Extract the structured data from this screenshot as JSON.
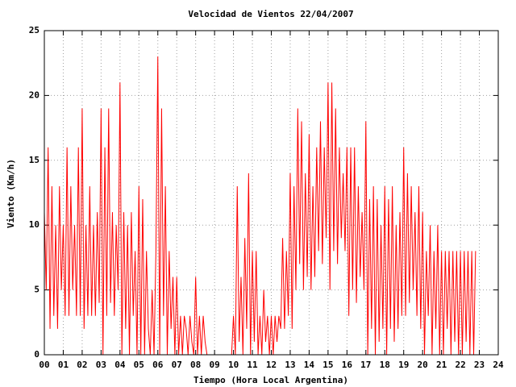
{
  "chart_data": {
    "type": "line",
    "title": "Velocidad de Vientos 22/04/2007",
    "xlabel": "Tiempo (Hora Local Argentina)",
    "ylabel": "Viento (Km/h)",
    "xlim": [
      0,
      24
    ],
    "ylim": [
      0,
      25
    ],
    "yticks": [
      0,
      5,
      10,
      15,
      20,
      25
    ],
    "xticks": [
      {
        "value": 0,
        "label": "00"
      },
      {
        "value": 1,
        "label": "01"
      },
      {
        "value": 2,
        "label": "02"
      },
      {
        "value": 3,
        "label": "03"
      },
      {
        "value": 4,
        "label": "04"
      },
      {
        "value": 5,
        "label": "05"
      },
      {
        "value": 6,
        "label": "06"
      },
      {
        "value": 7,
        "label": "07"
      },
      {
        "value": 8,
        "label": "08"
      },
      {
        "value": 9,
        "label": "09"
      },
      {
        "value": 10,
        "label": "10"
      },
      {
        "value": 11,
        "label": "11"
      },
      {
        "value": 12,
        "label": "12"
      },
      {
        "value": 13,
        "label": "13"
      },
      {
        "value": 14,
        "label": "14"
      },
      {
        "value": 15,
        "label": "15"
      },
      {
        "value": 16,
        "label": "16"
      },
      {
        "value": 17,
        "label": "17"
      },
      {
        "value": 18,
        "label": "18"
      },
      {
        "value": 19,
        "label": "19"
      },
      {
        "value": 20,
        "label": "20"
      },
      {
        "value": 21,
        "label": "21"
      },
      {
        "value": 22,
        "label": "22"
      },
      {
        "value": 23,
        "label": "23"
      },
      {
        "value": 24,
        "label": "24"
      }
    ],
    "grid": true,
    "x": [
      0,
      0.1,
      0.2,
      0.3,
      0.4,
      0.5,
      0.6,
      0.7,
      0.8,
      0.9,
      1,
      1.1,
      1.2,
      1.3,
      1.4,
      1.5,
      1.6,
      1.7,
      1.8,
      1.9,
      2,
      2.1,
      2.2,
      2.3,
      2.4,
      2.5,
      2.6,
      2.7,
      2.8,
      2.9,
      3,
      3.1,
      3.2,
      3.3,
      3.4,
      3.5,
      3.6,
      3.7,
      3.8,
      3.9,
      4,
      4.1,
      4.2,
      4.3,
      4.4,
      4.5,
      4.6,
      4.7,
      4.8,
      4.9,
      5,
      5.1,
      5.2,
      5.3,
      5.4,
      5.5,
      5.6,
      5.7,
      5.8,
      5.9,
      6,
      6.1,
      6.2,
      6.3,
      6.4,
      6.5,
      6.6,
      6.7,
      6.8,
      6.9,
      7,
      7.1,
      7.2,
      7.3,
      7.4,
      7.5,
      7.6,
      7.7,
      7.8,
      7.9,
      8,
      8.1,
      8.2,
      8.3,
      8.4,
      8.5,
      8.6,
      8.7,
      8.8,
      8.9,
      9,
      9.1,
      9.2,
      9.3,
      9.4,
      9.5,
      9.6,
      9.7,
      9.8,
      9.9,
      10,
      10.1,
      10.2,
      10.3,
      10.4,
      10.5,
      10.6,
      10.7,
      10.8,
      10.9,
      11,
      11.1,
      11.2,
      11.3,
      11.4,
      11.5,
      11.6,
      11.7,
      11.8,
      11.9,
      12,
      12.1,
      12.2,
      12.3,
      12.4,
      12.5,
      12.6,
      12.7,
      12.8,
      12.9,
      13,
      13.1,
      13.2,
      13.3,
      13.4,
      13.5,
      13.6,
      13.7,
      13.8,
      13.9,
      14,
      14.1,
      14.2,
      14.3,
      14.4,
      14.5,
      14.6,
      14.7,
      14.8,
      14.9,
      15,
      15.1,
      15.2,
      15.3,
      15.4,
      15.5,
      15.6,
      15.7,
      15.8,
      15.9,
      16,
      16.1,
      16.2,
      16.3,
      16.4,
      16.5,
      16.6,
      16.7,
      16.8,
      16.9,
      17,
      17.1,
      17.2,
      17.3,
      17.4,
      17.5,
      17.6,
      17.7,
      17.8,
      17.9,
      18,
      18.1,
      18.2,
      18.3,
      18.4,
      18.5,
      18.6,
      18.7,
      18.8,
      18.9,
      19,
      19.1,
      19.2,
      19.3,
      19.4,
      19.5,
      19.6,
      19.7,
      19.8,
      19.9,
      20,
      20.1,
      20.2,
      20.3,
      20.4,
      20.5,
      20.6,
      20.7,
      20.8,
      20.9,
      21,
      21.1,
      21.2,
      21.3,
      21.4,
      21.5,
      21.6,
      21.7,
      21.8,
      21.9,
      22,
      22.1,
      22.2,
      22.3,
      22.4,
      22.5,
      22.6,
      22.7,
      22.8
    ],
    "series": [
      {
        "color": "#ff0000",
        "values": [
          11,
          5,
          16,
          2,
          13,
          3,
          10,
          2,
          13,
          5,
          10,
          3,
          16,
          3,
          13,
          5,
          10,
          3,
          16,
          3,
          19,
          2,
          10,
          3,
          13,
          3,
          10,
          3,
          11,
          4,
          19,
          0,
          16,
          3,
          19,
          4,
          11,
          3,
          10,
          5,
          21,
          0,
          11,
          2,
          10,
          0,
          11,
          3,
          8,
          0,
          13,
          0,
          12,
          0,
          8,
          2,
          0,
          5,
          0,
          8,
          23,
          0,
          19,
          3,
          13,
          0,
          8,
          2,
          6,
          0,
          6,
          0,
          3,
          0,
          3,
          2,
          0,
          3,
          1,
          0,
          6,
          0,
          3,
          0,
          3,
          1,
          0,
          0,
          0,
          0,
          0,
          0,
          0,
          0,
          0,
          0,
          0,
          0,
          0,
          0,
          3,
          0,
          13,
          1,
          6,
          0,
          9,
          2,
          14,
          0,
          8,
          1,
          8,
          0,
          3,
          0,
          5,
          1,
          3,
          0,
          3,
          0,
          3,
          1,
          3,
          2,
          9,
          2,
          8,
          3,
          14,
          2,
          13,
          5,
          19,
          7,
          18,
          5,
          14,
          6,
          17,
          5,
          13,
          6,
          16,
          8,
          18,
          7,
          16,
          9,
          21,
          5,
          21,
          8,
          19,
          7,
          16,
          9,
          14,
          8,
          16,
          3,
          16,
          5,
          16,
          4,
          13,
          6,
          11,
          5,
          18,
          0,
          12,
          2,
          13,
          0,
          12,
          1,
          10,
          2,
          13,
          0,
          12,
          2,
          13,
          1,
          10,
          2,
          11,
          3,
          16,
          3,
          14,
          4,
          13,
          5,
          11,
          3,
          13,
          2,
          11,
          0,
          8,
          3,
          10,
          0,
          8,
          2,
          10,
          0,
          8,
          0,
          8,
          2,
          8,
          0,
          8,
          1,
          8,
          0,
          8,
          0,
          8,
          1,
          8,
          0,
          8,
          0,
          8
        ]
      }
    ]
  }
}
